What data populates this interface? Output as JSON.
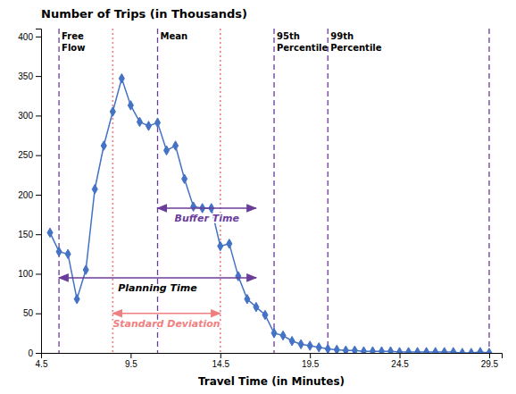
{
  "chart_data": {
    "type": "line",
    "title": "Number of Trips  (in Thousands)",
    "x_label": "Travel Time (in Minutes)",
    "x": [
      5.0,
      5.5,
      6.0,
      6.5,
      7.0,
      7.5,
      8.0,
      8.5,
      9.0,
      9.5,
      10.0,
      10.5,
      11.0,
      11.5,
      12.0,
      12.5,
      13.0,
      13.5,
      14.0,
      14.5,
      15.0,
      15.5,
      16.0,
      16.5,
      17.0,
      17.5,
      18.0,
      18.5,
      19.0,
      19.5,
      20.0,
      20.5,
      21.0,
      21.5,
      22.0,
      22.5,
      23.0,
      23.5,
      24.0,
      24.5,
      25.0,
      25.5,
      26.0,
      26.5,
      27.0,
      27.5,
      28.0,
      28.5,
      29.0,
      29.5
    ],
    "series": [
      {
        "color": "#4472C4",
        "marker": "diamond",
        "values": [
          152,
          128,
          125,
          68,
          105,
          207,
          262,
          305,
          347,
          313,
          292,
          287,
          291,
          256,
          262,
          220,
          185,
          183,
          183,
          135,
          138,
          97,
          68,
          58,
          48,
          25,
          22,
          15,
          11,
          9,
          7,
          5,
          4,
          3,
          3,
          2,
          2,
          2,
          2,
          1,
          1,
          1,
          1,
          1,
          1,
          1,
          0,
          0,
          1,
          0
        ]
      }
    ],
    "xlim": [
      4.5,
      30.2
    ],
    "ylim": [
      0,
      410
    ],
    "xticks": [
      4.5,
      9.5,
      14.5,
      19.5,
      24.5,
      29.5
    ],
    "yticks": [
      0,
      50,
      100,
      150,
      200,
      250,
      300,
      350,
      400
    ],
    "grid": false,
    "reference_lines": [
      {
        "x": 5.5,
        "color": "#6A3D9A",
        "line_style": "dashed",
        "label": [
          "Free",
          "Flow"
        ]
      },
      {
        "x": 11.0,
        "color": "#6A3D9A",
        "line_style": "dashed",
        "label": [
          "Mean"
        ]
      },
      {
        "x": 17.5,
        "color": "#6A3D9A",
        "line_style": "dashed",
        "label": [
          "95th",
          "Percentile"
        ]
      },
      {
        "x": 20.5,
        "color": "#6A3D9A",
        "line_style": "dashed",
        "label": [
          "99th",
          "Percentile"
        ]
      },
      {
        "x": 29.5,
        "color": "#6A3D9A",
        "line_style": "dashed"
      },
      {
        "x": 8.5,
        "color": "#F08080",
        "line_style": "dotted"
      },
      {
        "x": 14.5,
        "color": "#F08080",
        "line_style": "dotted"
      }
    ],
    "arrows": [
      {
        "text": "Buffer Time",
        "x": [
          11.0,
          16.5
        ],
        "y": 183,
        "color": "#6A3D9A",
        "label_color": "#6A3D9A"
      },
      {
        "text": "Planning Time",
        "x": [
          5.5,
          16.5
        ],
        "y": 95,
        "color": "#6A3D9A",
        "label_color": "#000000"
      },
      {
        "text": "Standard Deviation",
        "x": [
          8.5,
          14.5
        ],
        "y": 50,
        "color": "#F08080",
        "label_color": "#F08080"
      }
    ]
  }
}
